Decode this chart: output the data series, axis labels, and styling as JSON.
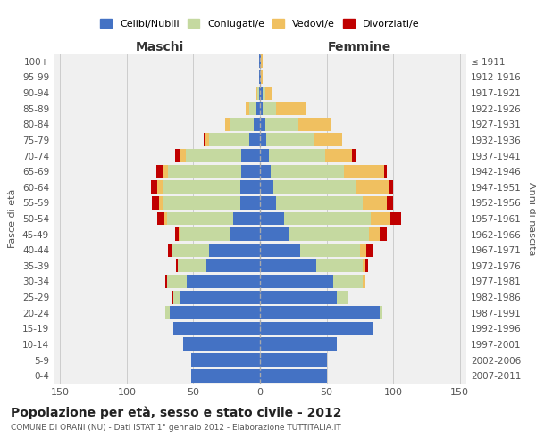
{
  "age_groups": [
    "0-4",
    "5-9",
    "10-14",
    "15-19",
    "20-24",
    "25-29",
    "30-34",
    "35-39",
    "40-44",
    "45-49",
    "50-54",
    "55-59",
    "60-64",
    "65-69",
    "70-74",
    "75-79",
    "80-84",
    "85-89",
    "90-94",
    "95-99",
    "100+"
  ],
  "birth_years": [
    "2007-2011",
    "2002-2006",
    "1997-2001",
    "1992-1996",
    "1987-1991",
    "1982-1986",
    "1977-1981",
    "1972-1976",
    "1967-1971",
    "1962-1966",
    "1957-1961",
    "1952-1956",
    "1947-1951",
    "1942-1946",
    "1937-1941",
    "1932-1936",
    "1927-1931",
    "1922-1926",
    "1917-1921",
    "1912-1916",
    "≤ 1911"
  ],
  "maschi": {
    "celibi": [
      52,
      52,
      58,
      65,
      68,
      60,
      55,
      40,
      38,
      22,
      20,
      15,
      15,
      14,
      14,
      8,
      5,
      3,
      1,
      1,
      1
    ],
    "coniugati": [
      0,
      0,
      0,
      0,
      3,
      5,
      15,
      22,
      28,
      38,
      50,
      58,
      58,
      55,
      42,
      30,
      18,
      5,
      1,
      0,
      0
    ],
    "vedovi": [
      0,
      0,
      0,
      0,
      0,
      0,
      0,
      0,
      0,
      1,
      2,
      3,
      4,
      4,
      4,
      3,
      3,
      3,
      1,
      0,
      0
    ],
    "divorziati": [
      0,
      0,
      0,
      0,
      0,
      1,
      1,
      1,
      3,
      3,
      5,
      5,
      5,
      5,
      4,
      1,
      0,
      0,
      0,
      0,
      0
    ]
  },
  "femmine": {
    "nubili": [
      50,
      50,
      58,
      85,
      90,
      58,
      55,
      42,
      30,
      22,
      18,
      12,
      10,
      8,
      7,
      5,
      4,
      2,
      2,
      1,
      1
    ],
    "coniugate": [
      0,
      0,
      0,
      0,
      2,
      8,
      22,
      35,
      45,
      60,
      65,
      65,
      62,
      55,
      42,
      35,
      25,
      10,
      2,
      0,
      0
    ],
    "vedove": [
      0,
      0,
      0,
      0,
      0,
      0,
      2,
      2,
      5,
      8,
      15,
      18,
      25,
      30,
      20,
      22,
      25,
      22,
      5,
      1,
      1
    ],
    "divorziate": [
      0,
      0,
      0,
      0,
      0,
      0,
      0,
      2,
      5,
      5,
      8,
      5,
      3,
      2,
      3,
      0,
      0,
      0,
      0,
      0,
      0
    ]
  },
  "colors": {
    "celibi_nubili": "#4472C4",
    "coniugati": "#C5D9A0",
    "vedovi": "#F0C060",
    "divorziati": "#C00000"
  },
  "xlim": 155,
  "title": "Popolazione per età, sesso e stato civile - 2012",
  "subtitle": "COMUNE DI ORANI (NU) - Dati ISTAT 1° gennaio 2012 - Elaborazione TUTTITALIA.IT",
  "xlabel_maschi": "Maschi",
  "xlabel_femmine": "Femmine",
  "ylabel_left": "Fasce di età",
  "ylabel_right": "Anni di nascita",
  "bg_color": "#f0f0f0",
  "grid_color": "#cccccc"
}
